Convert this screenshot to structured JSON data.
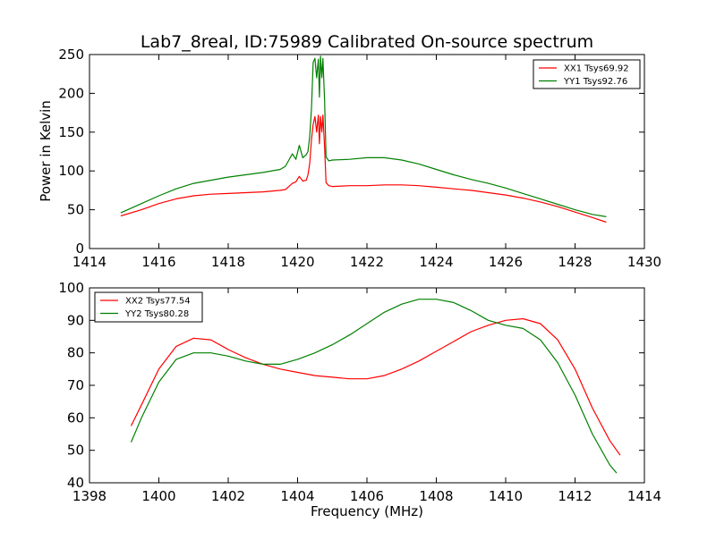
{
  "figure": {
    "title": "Lab7_8real, ID:75989 Calibrated On-source spectrum",
    "xlabel": "Frequency (MHz)",
    "ylabel": "Power in Kelvin"
  },
  "chart_data": [
    {
      "type": "line",
      "title": "Lab7_8real, ID:75989 Calibrated On-source spectrum",
      "xlabel": "",
      "ylabel": "Power in Kelvin",
      "xlim": [
        1414,
        1430
      ],
      "ylim": [
        0,
        250
      ],
      "xticks": [
        1414,
        1416,
        1418,
        1420,
        1422,
        1424,
        1426,
        1428,
        1430
      ],
      "yticks": [
        0,
        50,
        100,
        150,
        200,
        250
      ],
      "legend": {
        "placement": "top-right"
      },
      "grid": false,
      "series": [
        {
          "name": "XX1 Tsys69.92",
          "color": "#ff0000",
          "x": [
            1414.9,
            1415.5,
            1416.0,
            1416.5,
            1417.0,
            1417.5,
            1418.0,
            1418.5,
            1419.0,
            1419.5,
            1419.65,
            1419.75,
            1419.85,
            1419.95,
            1420.05,
            1420.15,
            1420.25,
            1420.3,
            1420.35,
            1420.4,
            1420.45,
            1420.5,
            1420.55,
            1420.6,
            1420.63,
            1420.66,
            1420.7,
            1420.73,
            1420.78,
            1420.82,
            1420.9,
            1421.0,
            1421.5,
            1422.0,
            1422.5,
            1423.0,
            1423.5,
            1424.0,
            1424.5,
            1425.0,
            1425.5,
            1426.0,
            1426.5,
            1427.0,
            1427.5,
            1428.0,
            1428.5,
            1428.9
          ],
          "y": [
            42,
            50,
            58,
            64,
            68,
            70,
            71,
            72,
            73,
            75,
            76,
            80,
            84,
            86,
            93,
            87,
            88,
            95,
            110,
            140,
            160,
            170,
            150,
            172,
            135,
            170,
            150,
            172,
            130,
            85,
            81,
            80,
            81,
            81,
            82,
            82,
            81,
            79,
            77,
            75,
            72,
            69,
            65,
            60,
            54,
            47,
            40,
            34
          ]
        },
        {
          "name": "YY1 Tsys92.76",
          "color": "#008000",
          "x": [
            1414.9,
            1415.5,
            1416.0,
            1416.5,
            1417.0,
            1417.5,
            1418.0,
            1418.5,
            1419.0,
            1419.5,
            1419.65,
            1419.75,
            1419.85,
            1419.95,
            1420.05,
            1420.15,
            1420.25,
            1420.3,
            1420.35,
            1420.4,
            1420.45,
            1420.5,
            1420.55,
            1420.6,
            1420.63,
            1420.66,
            1420.7,
            1420.73,
            1420.78,
            1420.82,
            1420.9,
            1421.0,
            1421.5,
            1422.0,
            1422.5,
            1423.0,
            1423.5,
            1424.0,
            1424.5,
            1425.0,
            1425.5,
            1426.0,
            1426.5,
            1427.0,
            1427.5,
            1428.0,
            1428.5,
            1428.9
          ],
          "y": [
            46,
            58,
            68,
            77,
            84,
            88,
            92,
            95,
            98,
            102,
            106,
            114,
            122,
            115,
            133,
            117,
            121,
            125,
            145,
            180,
            240,
            245,
            220,
            244,
            195,
            248,
            220,
            245,
            190,
            118,
            113,
            114,
            115,
            117,
            117,
            114,
            109,
            102,
            95,
            89,
            84,
            78,
            71,
            64,
            57,
            50,
            44,
            41
          ]
        }
      ]
    },
    {
      "type": "line",
      "title": "",
      "xlabel": "Frequency (MHz)",
      "ylabel": "",
      "xlim": [
        1398,
        1414
      ],
      "ylim": [
        40,
        100
      ],
      "xticks": [
        1398,
        1400,
        1402,
        1404,
        1406,
        1408,
        1410,
        1412,
        1414
      ],
      "yticks": [
        40,
        50,
        60,
        70,
        80,
        90,
        100
      ],
      "legend": {
        "placement": "top-left"
      },
      "grid": false,
      "series": [
        {
          "name": "XX2 Tsys77.54",
          "color": "#ff0000",
          "x": [
            1399.2,
            1399.5,
            1400.0,
            1400.5,
            1401.0,
            1401.5,
            1402.0,
            1402.5,
            1403.0,
            1403.5,
            1404.0,
            1404.5,
            1405.0,
            1405.5,
            1406.0,
            1406.5,
            1407.0,
            1407.5,
            1408.0,
            1408.5,
            1409.0,
            1409.5,
            1410.0,
            1410.5,
            1411.0,
            1411.5,
            1412.0,
            1412.5,
            1413.0,
            1413.3
          ],
          "y": [
            57.5,
            64,
            75,
            82,
            84.5,
            84,
            81,
            78.5,
            76.5,
            75,
            74,
            73,
            72.5,
            72,
            72,
            73,
            75,
            77.5,
            80.5,
            83.5,
            86.5,
            88.5,
            90,
            90.5,
            89,
            84,
            75,
            63,
            53,
            48.5
          ]
        },
        {
          "name": "YY2 Tsys80.28",
          "color": "#008000",
          "x": [
            1399.2,
            1399.5,
            1400.0,
            1400.5,
            1401.0,
            1401.5,
            1402.0,
            1402.5,
            1403.0,
            1403.5,
            1404.0,
            1404.5,
            1405.0,
            1405.5,
            1406.0,
            1406.5,
            1407.0,
            1407.5,
            1408.0,
            1408.5,
            1409.0,
            1409.5,
            1410.0,
            1410.5,
            1411.0,
            1411.5,
            1412.0,
            1412.5,
            1413.0,
            1413.2
          ],
          "y": [
            52.5,
            60,
            71,
            78,
            80,
            80,
            79,
            77.5,
            76.5,
            76.5,
            78,
            80,
            82.5,
            85.5,
            89,
            92.5,
            95,
            96.5,
            96.5,
            95.5,
            93,
            90,
            88.5,
            87.5,
            84,
            77,
            67,
            55,
            45.5,
            43
          ]
        }
      ]
    }
  ]
}
